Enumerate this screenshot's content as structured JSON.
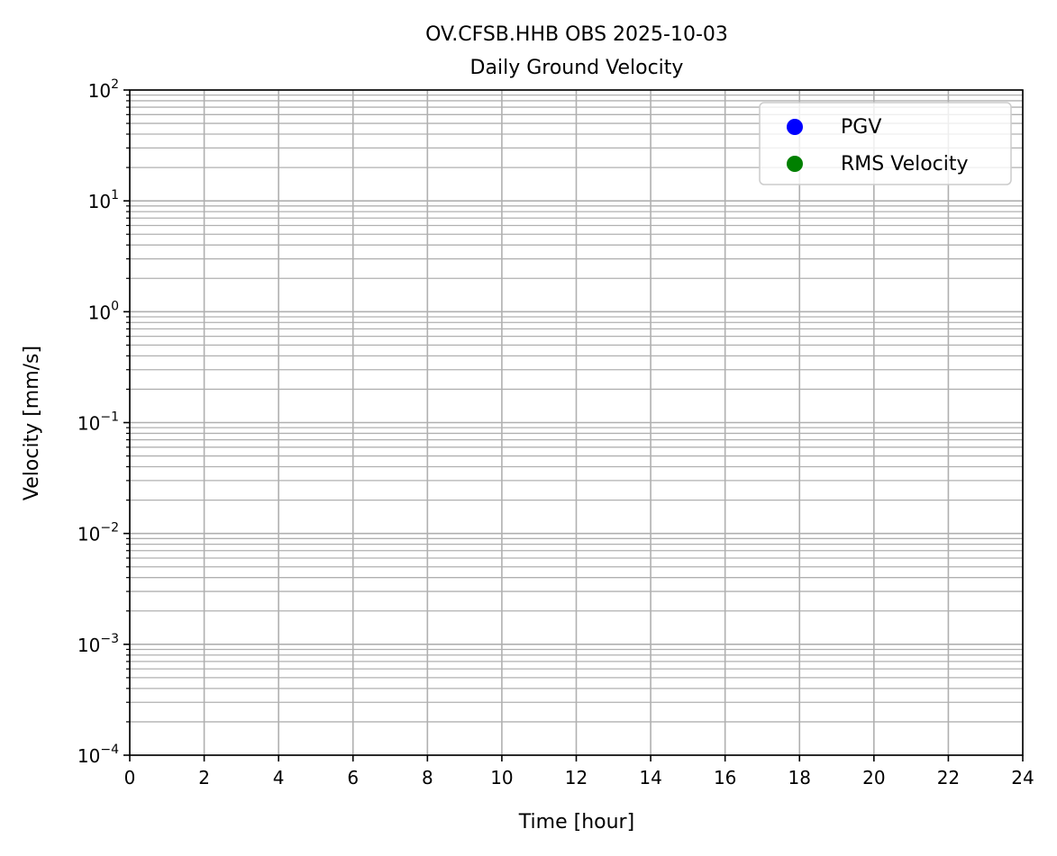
{
  "chart_data": {
    "type": "scatter",
    "title": "OV.CFSB.HHB OBS 2025-10-03",
    "subtitle": "Daily Ground Velocity",
    "xlabel": "Time [hour]",
    "ylabel": "Velocity [mm/s]",
    "xlim": [
      0,
      24
    ],
    "ylim": [
      0.0001,
      100
    ],
    "yscale": "log",
    "xticks": [
      0,
      2,
      4,
      6,
      8,
      10,
      12,
      14,
      16,
      18,
      20,
      22,
      24
    ],
    "yticks": [
      -4,
      -3,
      -2,
      -1,
      0,
      1,
      2
    ],
    "ytick_base": "10",
    "grid": {
      "x_major": true,
      "y_major": true,
      "y_minor": true
    },
    "legend_position": "top-right",
    "series": [
      {
        "name": "PGV",
        "color": "#0000ff",
        "x": [],
        "y": []
      },
      {
        "name": "RMS Velocity",
        "color": "#008000",
        "x": [],
        "y": []
      }
    ]
  }
}
